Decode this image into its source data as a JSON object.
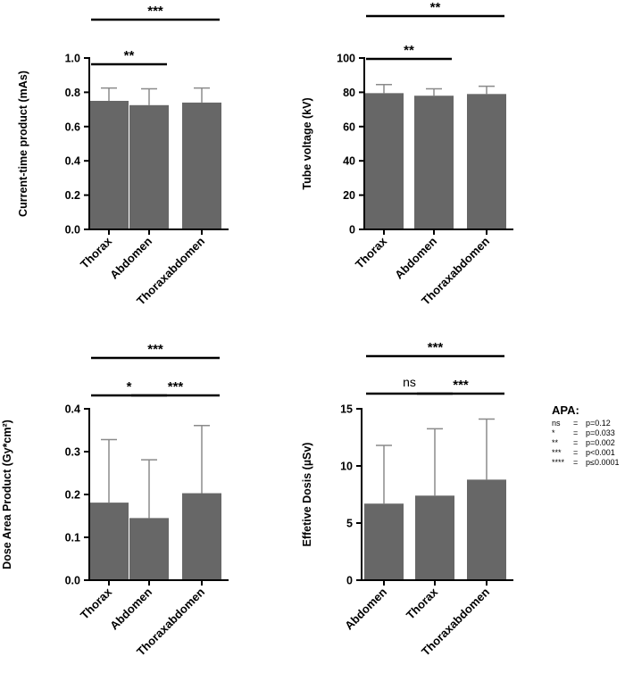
{
  "chart_data": [
    {
      "id": "mas",
      "type": "bar",
      "title": "",
      "xlabel": "",
      "ylabel": "Current-time product (mAs)",
      "categories": [
        "Thorax",
        "Abdomen",
        "Thoraxabdomen"
      ],
      "values": [
        0.75,
        0.725,
        0.74
      ],
      "errors": [
        0.075,
        0.095,
        0.085
      ],
      "ylim": [
        0,
        1.0
      ],
      "yticks": [
        0,
        0.2,
        0.4,
        0.6,
        0.8,
        1.0
      ],
      "ytick_labels": [
        "0.0",
        "0.2",
        "0.4",
        "0.6",
        "0.8",
        "1.0"
      ],
      "significance": [
        {
          "from": 0,
          "to": 1,
          "label": "**",
          "level": 1
        },
        {
          "from": 0,
          "to": 2,
          "label": "***",
          "level": 2
        }
      ]
    },
    {
      "id": "kv",
      "type": "bar",
      "title": "",
      "xlabel": "",
      "ylabel": "Tube voltage (kV)",
      "categories": [
        "Thorax",
        "Abdomen",
        "Thoraxabdomen"
      ],
      "values": [
        79.5,
        78,
        79
      ],
      "errors": [
        5,
        4,
        4.5
      ],
      "ylim": [
        0,
        100
      ],
      "yticks": [
        0,
        20,
        40,
        60,
        80,
        100
      ],
      "ytick_labels": [
        "0",
        "20",
        "40",
        "60",
        "80",
        "100"
      ],
      "significance": [
        {
          "from": 0,
          "to": 1,
          "label": "**",
          "level": 1
        },
        {
          "from": 0,
          "to": 2,
          "label": "**",
          "level": 2
        }
      ]
    },
    {
      "id": "dap",
      "type": "bar",
      "title": "",
      "xlabel": "",
      "ylabel": "Dose Area Product (Gy*cm²)",
      "categories": [
        "Thorax",
        "Abdomen",
        "Thoraxabdomen"
      ],
      "values": [
        0.181,
        0.145,
        0.203
      ],
      "errors": [
        0.147,
        0.136,
        0.158
      ],
      "ylim": [
        0,
        0.4
      ],
      "yticks": [
        0,
        0.1,
        0.2,
        0.3,
        0.4
      ],
      "ytick_labels": [
        "0.0",
        "0.1",
        "0.2",
        "0.3",
        "0.4"
      ],
      "significance": [
        {
          "from": 0,
          "to": 1,
          "label": "*",
          "level": 1
        },
        {
          "from": 1,
          "to": 2,
          "label": "***",
          "level": 1
        },
        {
          "from": 0,
          "to": 2,
          "label": "***",
          "level": 2
        }
      ]
    },
    {
      "id": "ed",
      "type": "bar",
      "title": "",
      "xlabel": "",
      "ylabel": "Effetive Dosis (µSv)",
      "categories": [
        "Abdomen",
        "Thorax",
        "Thoraxabdomen"
      ],
      "values": [
        6.7,
        7.4,
        8.8
      ],
      "errors": [
        5.1,
        5.85,
        5.3
      ],
      "ylim": [
        0,
        15
      ],
      "yticks": [
        0,
        5,
        10,
        15
      ],
      "ytick_labels": [
        "0",
        "5",
        "10",
        "15"
      ],
      "significance": [
        {
          "from": 0,
          "to": 1,
          "label": "ns",
          "level": 1
        },
        {
          "from": 1,
          "to": 2,
          "label": "***",
          "level": 1
        },
        {
          "from": 0,
          "to": 2,
          "label": "***",
          "level": 2
        }
      ]
    }
  ],
  "legend": {
    "title": "APA:",
    "rows": [
      {
        "symbol": "ns",
        "eq": "=",
        "value": "p=0.12"
      },
      {
        "symbol": "*",
        "eq": "=",
        "value": "p=0.033"
      },
      {
        "symbol": "**",
        "eq": "=",
        "value": "p=0.002"
      },
      {
        "symbol": "***",
        "eq": "=",
        "value": "p<0.001"
      },
      {
        "symbol": "****",
        "eq": "=",
        "value": "p≤0.0001"
      }
    ]
  },
  "colors": {
    "bar": "#676767",
    "error_bar": "#8a8a8a",
    "axis": "#000000"
  }
}
